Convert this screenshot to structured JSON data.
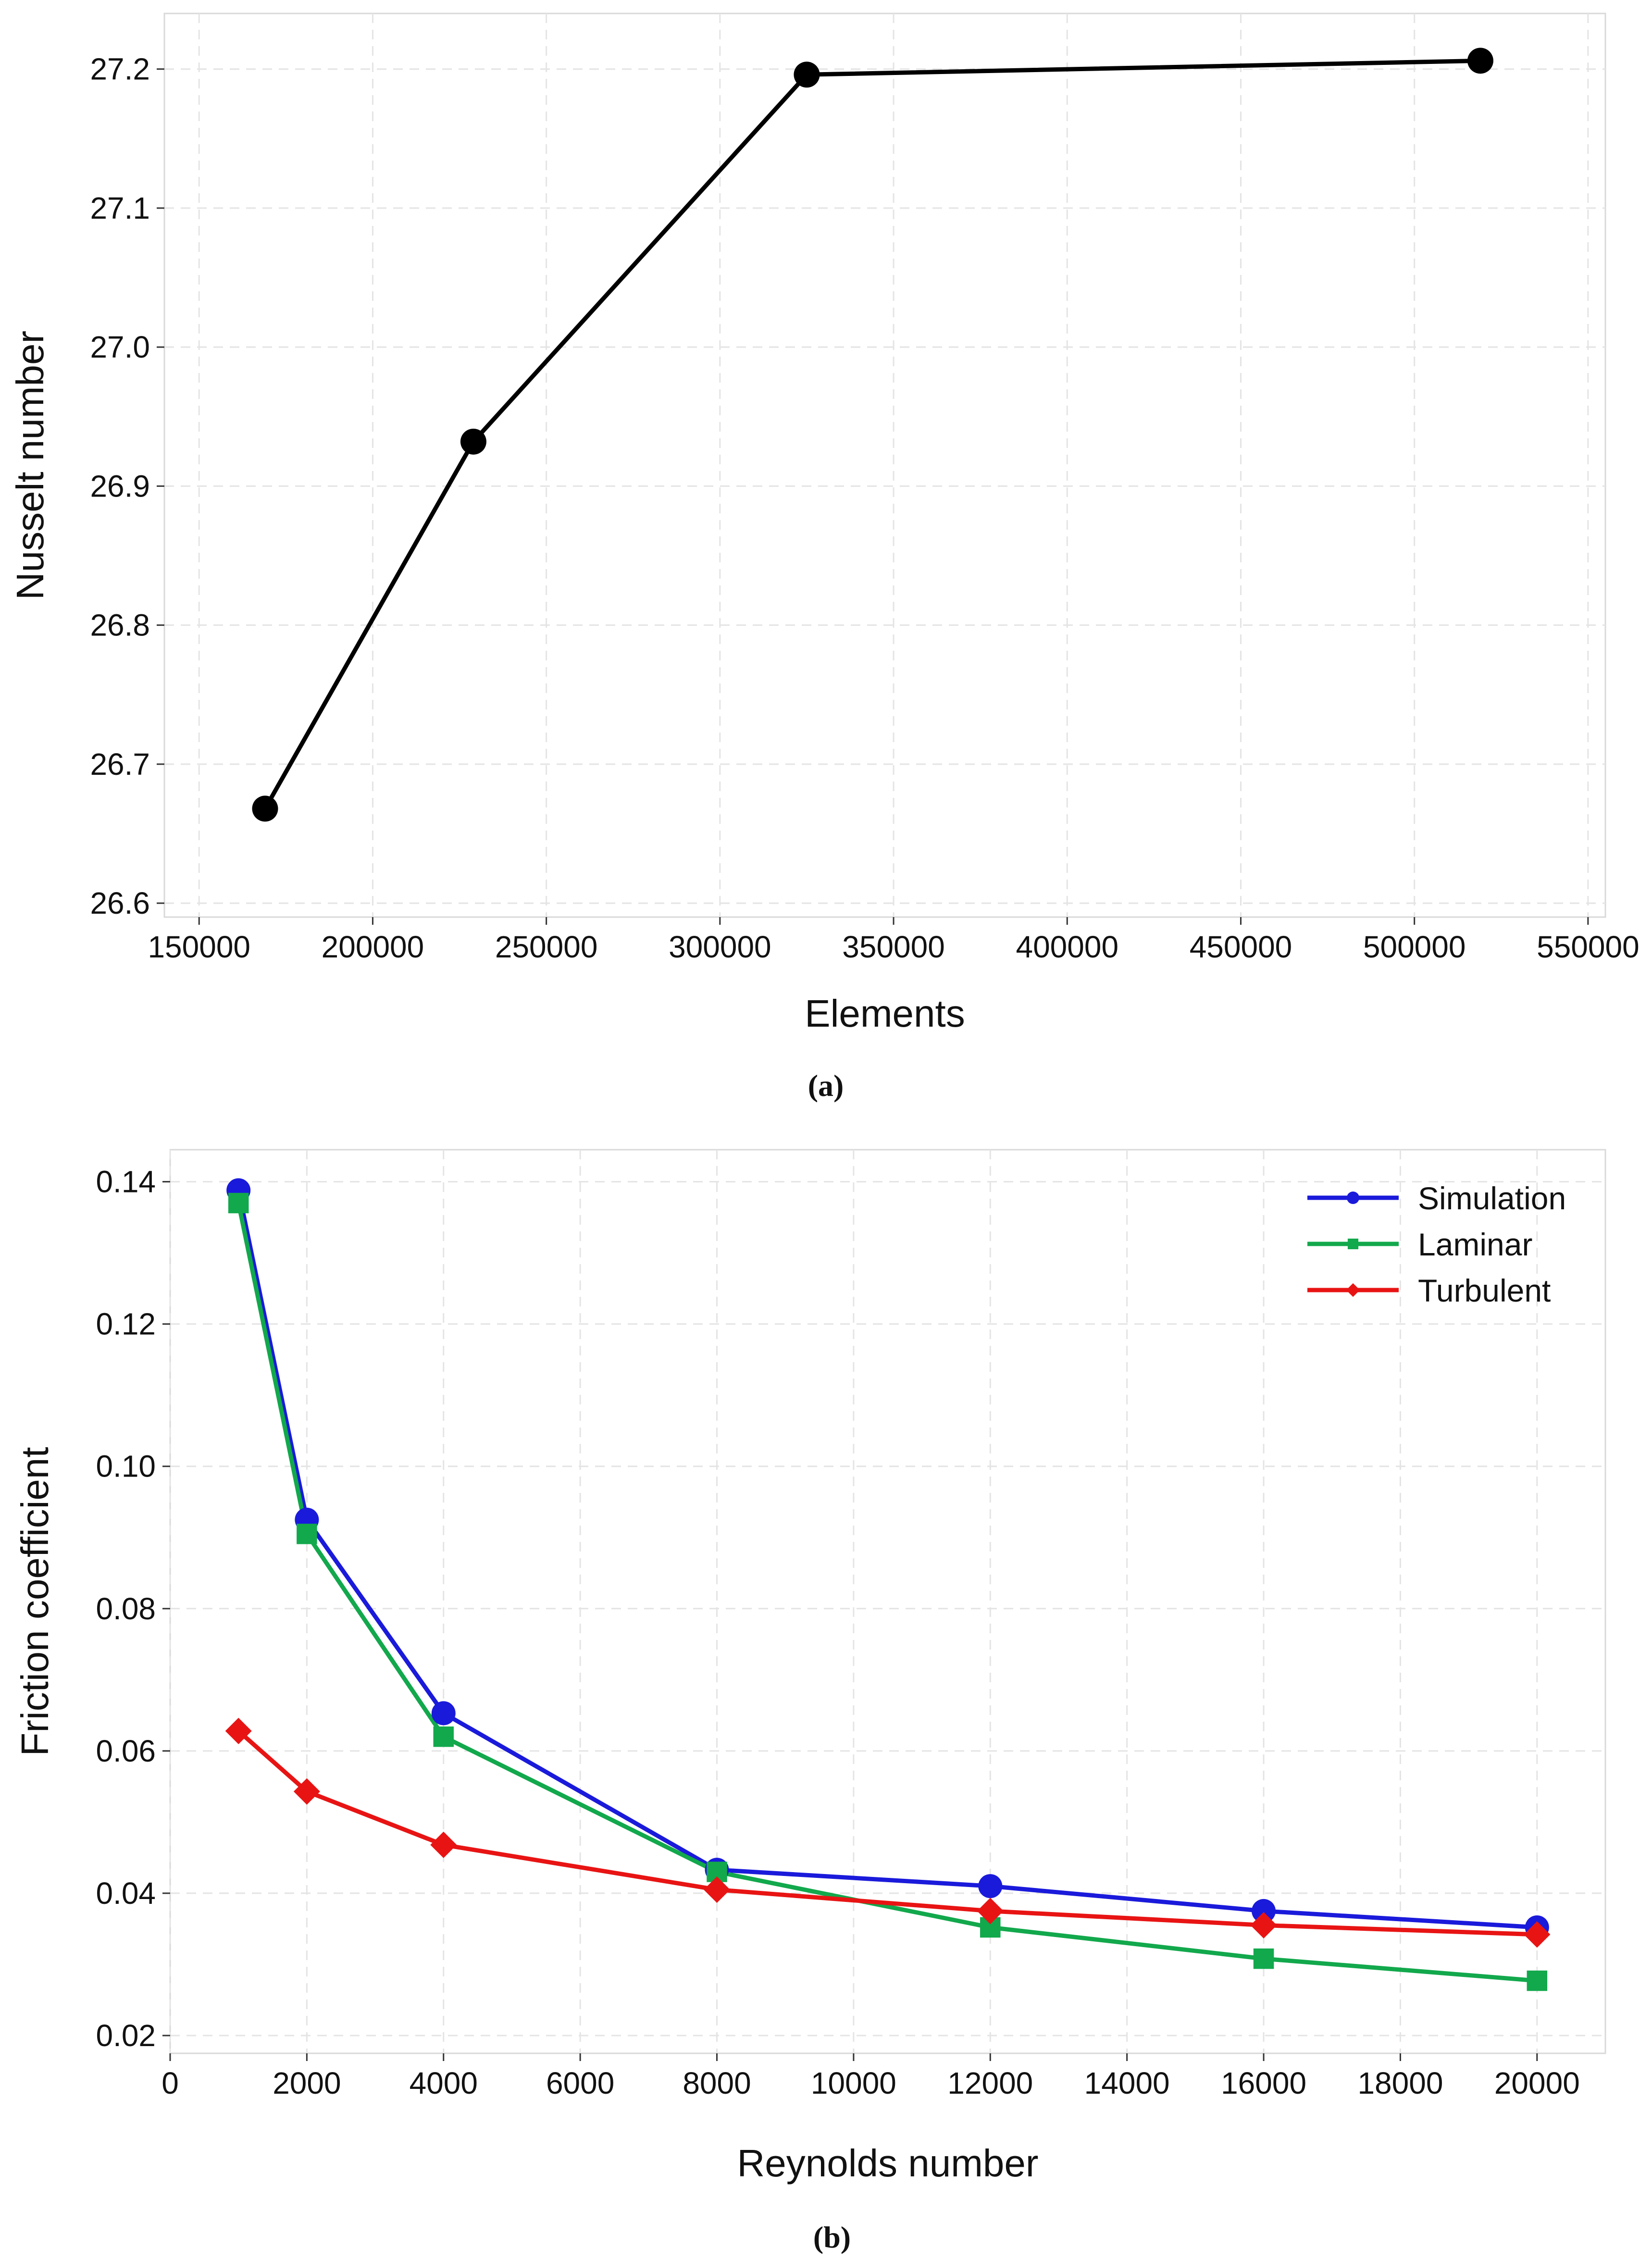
{
  "chart_data": [
    {
      "type": "line",
      "title": "",
      "panel_label": "(a)",
      "xlabel": "Elements",
      "ylabel": "Nusselt number",
      "xlim": [
        140000,
        555000
      ],
      "ylim": [
        26.59,
        27.24
      ],
      "x_ticks": [
        150000,
        200000,
        250000,
        300000,
        350000,
        400000,
        450000,
        500000,
        550000
      ],
      "x_tick_labels": [
        "150000",
        "200000",
        "250000",
        "300000",
        "350000",
        "400000",
        "450000",
        "500000",
        "550000"
      ],
      "y_ticks": [
        26.6,
        26.7,
        26.8,
        26.9,
        27.0,
        27.1,
        27.2
      ],
      "y_tick_labels": [
        "26.6",
        "26.7",
        "26.8",
        "26.9",
        "27.0",
        "27.1",
        "27.2"
      ],
      "grid": true,
      "legend": null,
      "series": [
        {
          "name": "Nusselt number",
          "color": "#000000",
          "marker": "circle",
          "x": [
            169000,
            229000,
            325000,
            519000
          ],
          "y": [
            26.668,
            26.932,
            27.196,
            27.206
          ]
        }
      ]
    },
    {
      "type": "line",
      "title": "",
      "panel_label": "(b)",
      "xlabel": "Reynolds number",
      "ylabel": "Friction coefficient",
      "xlim": [
        0,
        21000
      ],
      "ylim": [
        0.0175,
        0.1445
      ],
      "x_ticks": [
        0,
        2000,
        4000,
        6000,
        8000,
        10000,
        12000,
        14000,
        16000,
        18000,
        20000
      ],
      "x_tick_labels": [
        "0",
        "2000",
        "4000",
        "6000",
        "8000",
        "10000",
        "12000",
        "14000",
        "16000",
        "18000",
        "20000"
      ],
      "y_ticks": [
        0.02,
        0.04,
        0.06,
        0.08,
        0.1,
        0.12,
        0.14
      ],
      "y_tick_labels": [
        "0.02",
        "0.04",
        "0.06",
        "0.08",
        "0.10",
        "0.12",
        "0.14"
      ],
      "grid": true,
      "legend": "top-right",
      "series": [
        {
          "name": "Simulation",
          "color": "#1a1adb",
          "marker": "circle",
          "x": [
            1000,
            2000,
            4000,
            8000,
            12000,
            16000,
            20000
          ],
          "y": [
            0.1388,
            0.0925,
            0.0653,
            0.0433,
            0.041,
            0.0375,
            0.0352
          ]
        },
        {
          "name": "Laminar",
          "color": "#12a84c",
          "marker": "square",
          "x": [
            1000,
            2000,
            4000,
            8000,
            12000,
            16000,
            20000
          ],
          "y": [
            0.137,
            0.0905,
            0.062,
            0.043,
            0.0352,
            0.0308,
            0.0277
          ]
        },
        {
          "name": "Turbulent",
          "color": "#e81414",
          "marker": "diamond",
          "x": [
            1000,
            2000,
            4000,
            8000,
            12000,
            16000,
            20000
          ],
          "y": [
            0.0628,
            0.0543,
            0.0468,
            0.0405,
            0.0375,
            0.0355,
            0.0342
          ]
        }
      ]
    }
  ]
}
